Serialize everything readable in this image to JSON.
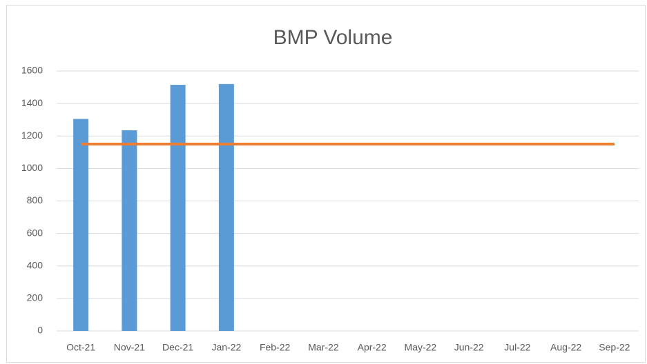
{
  "chart_data": {
    "type": "bar",
    "title": "BMP Volume",
    "categories": [
      "Oct-21",
      "Nov-21",
      "Dec-21",
      "Jan-22",
      "Feb-22",
      "Mar-22",
      "Apr-22",
      "May-22",
      "Jun-22",
      "Jul-22",
      "Aug-22",
      "Sep-22"
    ],
    "series": [
      {
        "type": "bar",
        "color": "#5b9bd5",
        "values": [
          1305,
          1235,
          1515,
          1520,
          null,
          null,
          null,
          null,
          null,
          null,
          null,
          null
        ]
      },
      {
        "type": "line",
        "color": "#ed7d31",
        "values": [
          1150,
          1150,
          1150,
          1150,
          1150,
          1150,
          1150,
          1150,
          1150,
          1150,
          1150,
          1150
        ]
      }
    ],
    "ylim": [
      0,
      1600
    ],
    "yticks": [
      0,
      200,
      400,
      600,
      800,
      1000,
      1200,
      1400,
      1600
    ],
    "grid": true
  }
}
